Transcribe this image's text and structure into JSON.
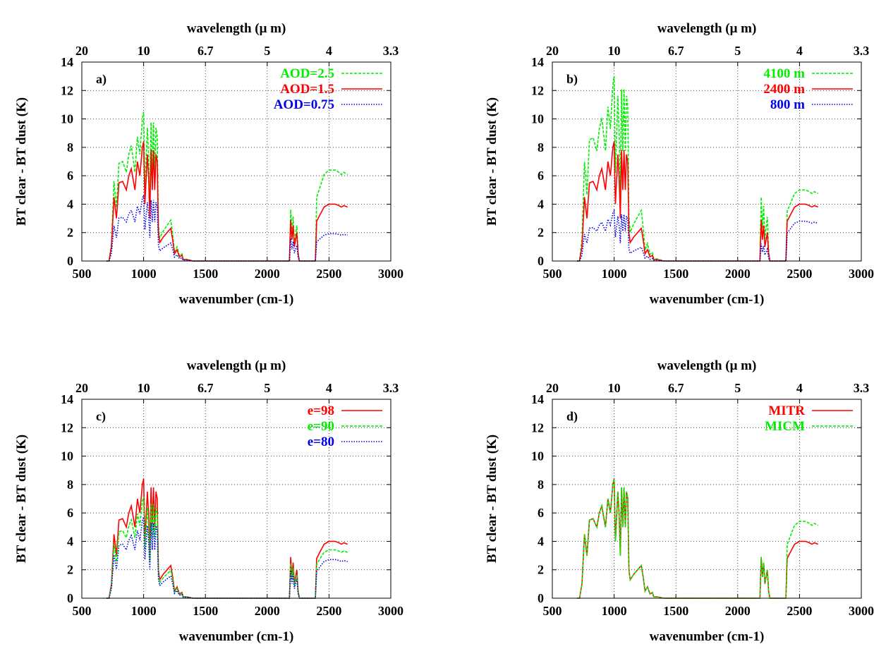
{
  "colors": {
    "green": "#00ee00",
    "red": "#ff0000",
    "blue": "#0000ee"
  },
  "panels": [
    {
      "label": "a)",
      "xlabel": "wavenumber (cm-1)",
      "ylabel": "BT clear - BT dust (K)",
      "x2label": "wavelength (μ m)",
      "xlim": [
        500,
        3000
      ],
      "ylim": [
        0,
        14
      ],
      "xticks": [
        "500",
        "1000",
        "1500",
        "2000",
        "2500",
        "3000"
      ],
      "yticks": [
        "0",
        "2",
        "4",
        "6",
        "8",
        "10",
        "12",
        "14"
      ],
      "x2ticks": [
        "20",
        "10",
        "6.7",
        "5",
        "4",
        "3.3"
      ],
      "legend": [
        {
          "name": "AOD=2.5",
          "color": "green",
          "dash": "dashed"
        },
        {
          "name": "AOD=1.5",
          "color": "red",
          "dash": "solid"
        },
        {
          "name": "AOD=0.75",
          "color": "blue",
          "dash": "dotted"
        }
      ],
      "shape": [
        [
          700,
          0
        ],
        [
          720,
          0
        ],
        [
          740,
          1
        ],
        [
          760,
          4.5
        ],
        [
          780,
          3
        ],
        [
          800,
          5.5
        ],
        [
          830,
          5.6
        ],
        [
          860,
          5
        ],
        [
          880,
          6
        ],
        [
          900,
          6.5
        ],
        [
          930,
          5
        ],
        [
          950,
          7
        ],
        [
          970,
          6
        ],
        [
          990,
          8
        ],
        [
          1000,
          8.4
        ],
        [
          1010,
          4
        ],
        [
          1030,
          7.5
        ],
        [
          1040,
          6
        ],
        [
          1050,
          3
        ],
        [
          1060,
          7.8
        ],
        [
          1070,
          5
        ],
        [
          1080,
          7.8
        ],
        [
          1090,
          5
        ],
        [
          1100,
          7.5
        ],
        [
          1110,
          7
        ],
        [
          1120,
          2
        ],
        [
          1130,
          1.3
        ],
        [
          1160,
          1.7
        ],
        [
          1200,
          2.1
        ],
        [
          1220,
          2.3
        ],
        [
          1235,
          1.5
        ],
        [
          1250,
          0.5
        ],
        [
          1270,
          0.8
        ],
        [
          1290,
          0.3
        ],
        [
          1310,
          0.4
        ],
        [
          1320,
          0.1
        ],
        [
          1350,
          0.1
        ],
        [
          1400,
          0
        ],
        [
          2150,
          0
        ],
        [
          2180,
          0
        ],
        [
          2190,
          2.9
        ],
        [
          2200,
          1.5
        ],
        [
          2210,
          2.5
        ],
        [
          2220,
          1
        ],
        [
          2240,
          2
        ],
        [
          2250,
          0.5
        ],
        [
          2260,
          0
        ],
        [
          2380,
          0
        ],
        [
          2390,
          0
        ],
        [
          2400,
          2.8
        ],
        [
          2430,
          3.3
        ],
        [
          2460,
          3.8
        ],
        [
          2500,
          4
        ],
        [
          2550,
          4
        ],
        [
          2580,
          3.9
        ],
        [
          2600,
          3.8
        ],
        [
          2620,
          3.9
        ],
        [
          2650,
          3.8
        ]
      ],
      "series": [
        {
          "name": "AOD=2.5",
          "color": "green",
          "dash": "dashed",
          "scale": 1.25,
          "tail": 1.6
        },
        {
          "name": "AOD=1.5",
          "color": "red",
          "dash": "solid",
          "scale": 1.0,
          "tail": 1.0
        },
        {
          "name": "AOD=0.75",
          "color": "blue",
          "dash": "dotted",
          "scale": 0.55,
          "tail": 0.48
        }
      ]
    },
    {
      "label": "b)",
      "xlabel": "wavenumber (cm-1)",
      "ylabel": "BT clear - BT dust (K)",
      "x2label": "wavelength (μ m)",
      "xlim": [
        500,
        3000
      ],
      "ylim": [
        0,
        14
      ],
      "xticks": [
        "500",
        "1000",
        "1500",
        "2000",
        "2500",
        "3000"
      ],
      "yticks": [
        "0",
        "2",
        "4",
        "6",
        "8",
        "10",
        "12",
        "14"
      ],
      "x2ticks": [
        "20",
        "10",
        "6.7",
        "5",
        "4",
        "3.3"
      ],
      "legend": [
        {
          "name": "4100 m",
          "color": "green",
          "dash": "dashed"
        },
        {
          "name": "2400 m",
          "color": "red",
          "dash": "solid"
        },
        {
          "name": "800 m",
          "color": "blue",
          "dash": "dotted"
        }
      ],
      "shape": [
        [
          700,
          0
        ],
        [
          720,
          0
        ],
        [
          740,
          1
        ],
        [
          760,
          4.5
        ],
        [
          780,
          3
        ],
        [
          800,
          5.5
        ],
        [
          830,
          5.6
        ],
        [
          860,
          5
        ],
        [
          880,
          6
        ],
        [
          900,
          6.5
        ],
        [
          930,
          5
        ],
        [
          950,
          7
        ],
        [
          970,
          6
        ],
        [
          990,
          8
        ],
        [
          1000,
          8.4
        ],
        [
          1010,
          4
        ],
        [
          1030,
          7.5
        ],
        [
          1040,
          6
        ],
        [
          1050,
          3
        ],
        [
          1060,
          7.8
        ],
        [
          1070,
          5
        ],
        [
          1080,
          7.8
        ],
        [
          1090,
          5
        ],
        [
          1100,
          7.5
        ],
        [
          1110,
          7
        ],
        [
          1120,
          2
        ],
        [
          1130,
          1.3
        ],
        [
          1160,
          1.7
        ],
        [
          1200,
          2.1
        ],
        [
          1220,
          2.3
        ],
        [
          1235,
          1.5
        ],
        [
          1250,
          0.5
        ],
        [
          1270,
          0.8
        ],
        [
          1290,
          0.3
        ],
        [
          1310,
          0.4
        ],
        [
          1320,
          0.1
        ],
        [
          1350,
          0.1
        ],
        [
          1400,
          0
        ],
        [
          2150,
          0
        ],
        [
          2180,
          0
        ],
        [
          2190,
          2.9
        ],
        [
          2200,
          1.5
        ],
        [
          2210,
          2.5
        ],
        [
          2220,
          1
        ],
        [
          2240,
          2
        ],
        [
          2250,
          0.5
        ],
        [
          2260,
          0
        ],
        [
          2380,
          0
        ],
        [
          2390,
          0
        ],
        [
          2400,
          2.8
        ],
        [
          2430,
          3.3
        ],
        [
          2460,
          3.8
        ],
        [
          2500,
          4
        ],
        [
          2550,
          4
        ],
        [
          2580,
          3.9
        ],
        [
          2600,
          3.8
        ],
        [
          2620,
          3.9
        ],
        [
          2650,
          3.8
        ]
      ],
      "series": [
        {
          "name": "4100 m",
          "color": "green",
          "dash": "dashed",
          "scale": 1.55,
          "tail": 1.25
        },
        {
          "name": "2400 m",
          "color": "red",
          "dash": "solid",
          "scale": 1.0,
          "tail": 1.0
        },
        {
          "name": "800 m",
          "color": "blue",
          "dash": "dotted",
          "scale": 0.42,
          "tail": 0.7
        }
      ]
    },
    {
      "label": "c)",
      "xlabel": "wavenumber (cm-1)",
      "ylabel": "BT clear - BT dust (K)",
      "x2label": "wavelength (μ m)",
      "xlim": [
        500,
        3000
      ],
      "ylim": [
        0,
        14
      ],
      "xticks": [
        "500",
        "1000",
        "1500",
        "2000",
        "2500",
        "3000"
      ],
      "yticks": [
        "0",
        "2",
        "4",
        "6",
        "8",
        "10",
        "12",
        "14"
      ],
      "x2ticks": [
        "20",
        "10",
        "6.7",
        "5",
        "4",
        "3.3"
      ],
      "legend": [
        {
          "name": "e=98",
          "color": "red",
          "dash": "solid"
        },
        {
          "name": "e=90",
          "color": "green",
          "dash": "dashed"
        },
        {
          "name": "e=80",
          "color": "blue",
          "dash": "dotted"
        }
      ],
      "shape": [
        [
          700,
          0
        ],
        [
          720,
          0
        ],
        [
          740,
          1
        ],
        [
          760,
          4.5
        ],
        [
          780,
          3
        ],
        [
          800,
          5.5
        ],
        [
          830,
          5.6
        ],
        [
          860,
          5
        ],
        [
          880,
          6
        ],
        [
          900,
          6.5
        ],
        [
          930,
          5
        ],
        [
          950,
          7
        ],
        [
          970,
          6
        ],
        [
          990,
          8
        ],
        [
          1000,
          8.4
        ],
        [
          1010,
          4
        ],
        [
          1030,
          7.5
        ],
        [
          1040,
          6
        ],
        [
          1050,
          3
        ],
        [
          1060,
          7.8
        ],
        [
          1070,
          5
        ],
        [
          1080,
          7.8
        ],
        [
          1090,
          5
        ],
        [
          1100,
          7.5
        ],
        [
          1110,
          7
        ],
        [
          1120,
          2
        ],
        [
          1130,
          1.3
        ],
        [
          1160,
          1.7
        ],
        [
          1200,
          2.1
        ],
        [
          1220,
          2.3
        ],
        [
          1235,
          1.5
        ],
        [
          1250,
          0.5
        ],
        [
          1270,
          0.8
        ],
        [
          1290,
          0.3
        ],
        [
          1310,
          0.4
        ],
        [
          1320,
          0.1
        ],
        [
          1350,
          0.1
        ],
        [
          1400,
          0
        ],
        [
          2150,
          0
        ],
        [
          2180,
          0
        ],
        [
          2190,
          2.9
        ],
        [
          2200,
          1.5
        ],
        [
          2210,
          2.5
        ],
        [
          2220,
          1
        ],
        [
          2240,
          2
        ],
        [
          2250,
          0.5
        ],
        [
          2260,
          0
        ],
        [
          2380,
          0
        ],
        [
          2390,
          0
        ],
        [
          2400,
          2.8
        ],
        [
          2430,
          3.3
        ],
        [
          2460,
          3.8
        ],
        [
          2500,
          4
        ],
        [
          2550,
          4
        ],
        [
          2580,
          3.9
        ],
        [
          2600,
          3.8
        ],
        [
          2620,
          3.9
        ],
        [
          2650,
          3.8
        ]
      ],
      "series": [
        {
          "name": "e=98",
          "color": "red",
          "dash": "solid",
          "scale": 1.0,
          "tail": 1.0
        },
        {
          "name": "e=90",
          "color": "green",
          "dash": "dashed",
          "scale": 0.85,
          "tail": 0.85
        },
        {
          "name": "e=80",
          "color": "blue",
          "dash": "dotted",
          "scale": 0.68,
          "tail": 0.68
        }
      ]
    },
    {
      "label": "d)",
      "xlabel": "wavenumber (cm-1)",
      "ylabel": "BT clear - BT dust (K)",
      "x2label": "wavelength (μ m)",
      "xlim": [
        500,
        3000
      ],
      "ylim": [
        0,
        14
      ],
      "xticks": [
        "500",
        "1000",
        "1500",
        "2000",
        "2500",
        "3000"
      ],
      "yticks": [
        "0",
        "2",
        "4",
        "6",
        "8",
        "10",
        "12",
        "14"
      ],
      "x2ticks": [
        "20",
        "10",
        "6.7",
        "5",
        "4",
        "3.3"
      ],
      "legend": [
        {
          "name": "MITR",
          "color": "red",
          "dash": "solid"
        },
        {
          "name": "MICM",
          "color": "green",
          "dash": "dashed"
        }
      ],
      "shape": [
        [
          700,
          0
        ],
        [
          720,
          0
        ],
        [
          740,
          1
        ],
        [
          760,
          4.5
        ],
        [
          780,
          3
        ],
        [
          800,
          5.5
        ],
        [
          830,
          5.6
        ],
        [
          860,
          5
        ],
        [
          880,
          6
        ],
        [
          900,
          6.5
        ],
        [
          930,
          5
        ],
        [
          950,
          7
        ],
        [
          970,
          6
        ],
        [
          990,
          8
        ],
        [
          1000,
          8.4
        ],
        [
          1010,
          4
        ],
        [
          1030,
          7.5
        ],
        [
          1040,
          6
        ],
        [
          1050,
          3
        ],
        [
          1060,
          7.8
        ],
        [
          1070,
          5
        ],
        [
          1080,
          7.8
        ],
        [
          1090,
          5
        ],
        [
          1100,
          7.5
        ],
        [
          1110,
          7
        ],
        [
          1120,
          2
        ],
        [
          1130,
          1.3
        ],
        [
          1160,
          1.7
        ],
        [
          1200,
          2.1
        ],
        [
          1220,
          2.3
        ],
        [
          1235,
          1.5
        ],
        [
          1250,
          0.5
        ],
        [
          1270,
          0.8
        ],
        [
          1290,
          0.3
        ],
        [
          1310,
          0.4
        ],
        [
          1320,
          0.1
        ],
        [
          1350,
          0.1
        ],
        [
          1400,
          0
        ],
        [
          2150,
          0
        ],
        [
          2180,
          0
        ],
        [
          2190,
          2.9
        ],
        [
          2200,
          1.5
        ],
        [
          2210,
          2.5
        ],
        [
          2220,
          1
        ],
        [
          2240,
          2
        ],
        [
          2250,
          0.5
        ],
        [
          2260,
          0
        ],
        [
          2380,
          0
        ],
        [
          2390,
          0
        ],
        [
          2400,
          2.8
        ],
        [
          2430,
          3.3
        ],
        [
          2460,
          3.8
        ],
        [
          2500,
          4
        ],
        [
          2550,
          4
        ],
        [
          2580,
          3.9
        ],
        [
          2600,
          3.8
        ],
        [
          2620,
          3.9
        ],
        [
          2650,
          3.8
        ]
      ],
      "series": [
        {
          "name": "MITR",
          "color": "red",
          "dash": "solid",
          "scale": 1.0,
          "tail": 1.0
        },
        {
          "name": "MICM",
          "color": "green",
          "dash": "dashed",
          "scale": 1.0,
          "tail": 1.35
        }
      ]
    }
  ]
}
